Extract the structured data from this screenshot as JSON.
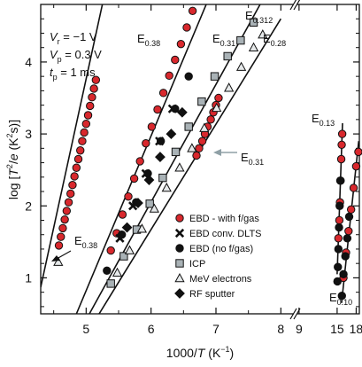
{
  "chart_data": {
    "type": "scatter",
    "xlabel": "1000/T (K⁻¹)",
    "ylabel": "log [T²/e (K²s)]",
    "xlabel_parts": {
      "pre": "1000/",
      "var": "T",
      "post": " (K",
      "sup": "−1",
      "close": ")"
    },
    "ylabel_parts": {
      "pre": "log [",
      "var": "T",
      "sup": "2",
      "slash": "/",
      "var2": "e",
      "post": " (K",
      "sup2": "2",
      "close": "s)]"
    },
    "ylim": [
      0.5,
      4.8
    ],
    "x_main_range": [
      4.3,
      8.2
    ],
    "x_inset_range": [
      8.6,
      18.5
    ],
    "x_ticks_main": [
      "5",
      "6",
      "7",
      "8"
    ],
    "x_ticks_inset": [
      "9",
      "15",
      "18"
    ],
    "y_ticks": [
      "1",
      "2",
      "3",
      "4"
    ],
    "conditions": [
      {
        "sym": "V",
        "sub": "r",
        "val": " = −1 V"
      },
      {
        "sym": "V",
        "sub": "p",
        "val": " = 0.3 V"
      },
      {
        "sym": "t",
        "sub": "p",
        "val": " = 1 ms"
      }
    ],
    "legend_position": "bottom-right",
    "legend": [
      {
        "marker": "circle-red",
        "label": "EBD - with f/gas"
      },
      {
        "marker": "cross",
        "label": "EBD conv. DLTS"
      },
      {
        "marker": "circle-black",
        "label": "EBD (no f/gas)"
      },
      {
        "marker": "square-gray",
        "label": "ICP"
      },
      {
        "marker": "triangle",
        "label": "MeV electrons"
      },
      {
        "marker": "diamond",
        "label": "RF sputter"
      }
    ],
    "peak_labels": [
      {
        "base": "E",
        "sub": "0.38"
      },
      {
        "base": "E",
        "sub": "0.31"
      },
      {
        "base": "E",
        "sub": "0.312"
      },
      {
        "base": "E",
        "sub": "0.28"
      },
      {
        "base": "E",
        "sub": "0.31"
      },
      {
        "base": "E",
        "sub": "0.38"
      },
      {
        "base": "E",
        "sub": "0.13"
      },
      {
        "base": "E",
        "sub": "0.10"
      }
    ],
    "fit_lines": [
      {
        "id": "E0.38",
        "from": [
          4.3,
          0.87
        ],
        "to": [
          5.25,
          4.8
        ]
      },
      {
        "id": "E0.31",
        "from": [
          4.85,
          0.5
        ],
        "to": [
          6.85,
          4.8
        ]
      },
      {
        "id": "E0.312",
        "from": [
          5.05,
          0.5
        ],
        "to": [
          7.68,
          4.8
        ]
      },
      {
        "id": "E0.28",
        "from": [
          5.2,
          0.5
        ],
        "to": [
          8.0,
          4.6
        ]
      },
      {
        "id": "E0.13",
        "from": [
          15.0,
          1.05
        ],
        "to": [
          15.85,
          3.15
        ]
      },
      {
        "id": "E0.10",
        "from": [
          15.7,
          0.65
        ],
        "to": [
          18.4,
          2.9
        ]
      }
    ],
    "series": [
      {
        "name": "EBD - with f/gas",
        "marker": "circle-red",
        "x": [
          4.58,
          4.61,
          4.64,
          4.67,
          4.7,
          4.73,
          4.76,
          4.79,
          4.82,
          4.85,
          4.88,
          4.91,
          4.94,
          4.97,
          5.0,
          5.03,
          5.06,
          5.09,
          5.12,
          5.15,
          5.38,
          5.47,
          5.56,
          5.65,
          5.74,
          5.83,
          5.92,
          6.01,
          6.1,
          6.19,
          6.28,
          6.37,
          6.46,
          6.55,
          6.64,
          6.7,
          6.74,
          6.79,
          6.83,
          6.87,
          6.92,
          6.96,
          7.0,
          7.04,
          15.2,
          15.35,
          15.45,
          15.55,
          15.65,
          15.72,
          15.8,
          16.0,
          16.4,
          16.8,
          17.2,
          17.6,
          18.0,
          18.35
        ],
        "y": [
          1.45,
          1.57,
          1.69,
          1.81,
          1.93,
          2.05,
          2.17,
          2.29,
          2.41,
          2.53,
          2.65,
          2.77,
          2.9,
          3.02,
          3.14,
          3.26,
          3.39,
          3.51,
          3.63,
          3.75,
          1.38,
          1.62,
          1.88,
          2.13,
          2.38,
          2.62,
          2.87,
          3.1,
          3.34,
          3.57,
          3.81,
          4.03,
          4.25,
          4.48,
          4.71,
          2.7,
          2.8,
          2.9,
          3.0,
          3.1,
          3.2,
          3.3,
          3.4,
          3.5,
          1.55,
          1.8,
          2.05,
          2.35,
          2.65,
          2.85,
          3.0,
          1.0,
          1.35,
          1.65,
          1.95,
          2.25,
          2.55,
          2.75
        ]
      },
      {
        "name": "EBD conv. DLTS",
        "marker": "cross",
        "x": [
          5.52,
          5.72,
          5.92,
          6.13,
          6.33
        ],
        "y": [
          1.55,
          2.0,
          2.45,
          2.9,
          3.35
        ]
      },
      {
        "name": "EBD (no f/gas)",
        "marker": "circle-black",
        "x": [
          5.32,
          5.55,
          5.77,
          5.95,
          6.15,
          6.37,
          6.58,
          15.05,
          15.12,
          15.2,
          15.3,
          15.4,
          15.5,
          15.75,
          16.0,
          16.3,
          16.6,
          16.9
        ],
        "y": [
          1.1,
          1.6,
          2.05,
          2.45,
          2.9,
          3.35,
          3.8,
          0.95,
          1.15,
          1.4,
          1.7,
          2.0,
          2.35,
          0.75,
          1.05,
          1.3,
          1.55,
          1.85
        ]
      },
      {
        "name": "ICP",
        "marker": "square-gray",
        "x": [
          5.38,
          5.58,
          5.78,
          5.98,
          6.18,
          6.38,
          6.58,
          6.78,
          6.98,
          7.18,
          7.38,
          7.58
        ],
        "y": [
          0.92,
          1.3,
          1.67,
          2.03,
          2.39,
          2.75,
          3.1,
          3.45,
          3.8,
          4.08,
          4.3,
          4.55
        ]
      },
      {
        "name": "MeV electrons",
        "marker": "triangle",
        "x": [
          4.57,
          5.48,
          5.67,
          5.86,
          6.05,
          6.24,
          6.44,
          6.63,
          6.82,
          7.01,
          7.2,
          7.39,
          7.58,
          7.72
        ],
        "y": [
          1.22,
          1.07,
          1.38,
          1.68,
          1.96,
          2.25,
          2.53,
          2.8,
          3.08,
          3.36,
          3.64,
          3.93,
          4.2,
          4.38
        ]
      },
      {
        "name": "RF sputter",
        "marker": "diamond",
        "x": [
          5.63,
          5.8,
          5.97,
          6.14,
          6.31,
          6.48
        ],
        "y": [
          1.7,
          2.04,
          2.36,
          2.68,
          3.0,
          3.3
        ]
      }
    ]
  }
}
